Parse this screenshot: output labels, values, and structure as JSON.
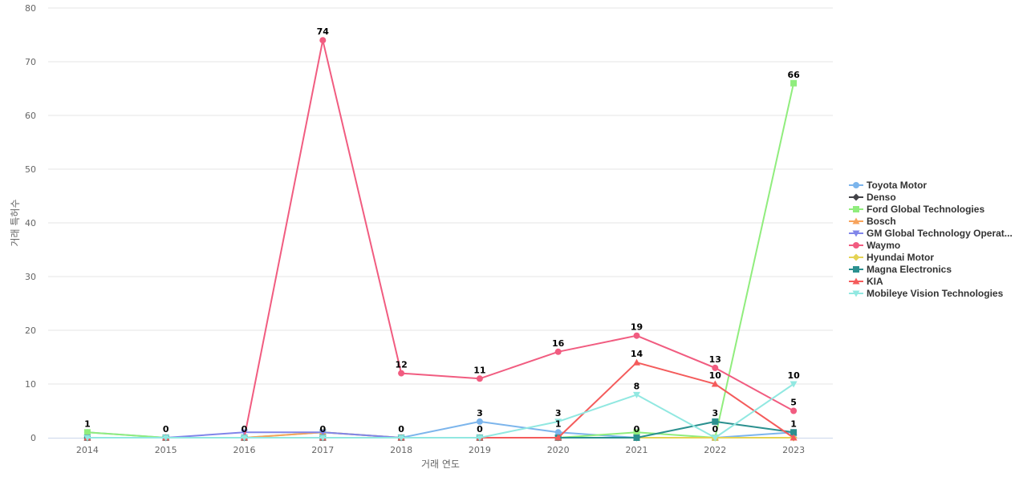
{
  "chart_data": {
    "type": "line",
    "xlabel": "거래 연도",
    "ylabel": "거래 특허수",
    "ylim": [
      0,
      80
    ],
    "yticks": [
      0,
      10,
      20,
      30,
      40,
      50,
      60,
      70,
      80
    ],
    "grid": true,
    "legend_position": "right",
    "categories": [
      "2014",
      "2015",
      "2016",
      "2017",
      "2018",
      "2019",
      "2020",
      "2021",
      "2022",
      "2023"
    ],
    "series": [
      {
        "name": "Toyota Motor",
        "color": "#7cb5ec",
        "marker": "circle",
        "values": [
          1,
          0,
          0,
          0,
          0,
          3,
          1,
          0,
          0,
          1
        ]
      },
      {
        "name": "Denso",
        "color": "#434348",
        "marker": "diamond",
        "values": [
          0,
          0,
          0,
          0,
          0,
          0,
          0,
          0,
          0,
          0
        ]
      },
      {
        "name": "Ford Global Technologies",
        "color": "#90ed7d",
        "marker": "square",
        "values": [
          1,
          0,
          0,
          1,
          0,
          0,
          0,
          1,
          0,
          66
        ]
      },
      {
        "name": "Bosch",
        "color": "#f7a35c",
        "marker": "triangle",
        "values": [
          0,
          0,
          0,
          1,
          0,
          0,
          0,
          0,
          0,
          0
        ]
      },
      {
        "name": "GM Global Technology Operat...",
        "color": "#8085e9",
        "marker": "triangle-down",
        "values": [
          0,
          0,
          1,
          1,
          0,
          0,
          0,
          0,
          0,
          0
        ]
      },
      {
        "name": "Waymo",
        "color": "#f15c80",
        "marker": "circle",
        "values": [
          0,
          0,
          0,
          74,
          12,
          11,
          16,
          19,
          13,
          5
        ]
      },
      {
        "name": "Hyundai Motor",
        "color": "#e4d354",
        "marker": "diamond",
        "values": [
          0,
          0,
          0,
          0,
          0,
          0,
          0,
          0,
          0,
          0
        ]
      },
      {
        "name": "Magna Electronics",
        "color": "#2b908f",
        "marker": "square",
        "values": [
          0,
          0,
          0,
          0,
          0,
          0,
          0,
          0,
          3,
          1
        ]
      },
      {
        "name": "KIA",
        "color": "#f45b5b",
        "marker": "triangle",
        "values": [
          0,
          0,
          0,
          0,
          0,
          0,
          0,
          14,
          10,
          0
        ]
      },
      {
        "name": "Mobileye Vision Technologies",
        "color": "#91e8e1",
        "marker": "triangle-down",
        "values": [
          0,
          0,
          0,
          0,
          0,
          0,
          3,
          8,
          0,
          10
        ]
      }
    ],
    "data_labels": [
      {
        "category": "2014",
        "text": "1"
      },
      {
        "category": "2015",
        "text": "0"
      },
      {
        "category": "2016",
        "text": "0"
      },
      {
        "category": "2017",
        "text": "74"
      },
      {
        "category": "2017",
        "text": "0"
      },
      {
        "category": "2018",
        "text": "12"
      },
      {
        "category": "2018",
        "text": "0"
      },
      {
        "category": "2019",
        "text": "3"
      },
      {
        "category": "2019",
        "text": "11"
      },
      {
        "category": "2019",
        "text": "0"
      },
      {
        "category": "2020",
        "text": "16"
      },
      {
        "category": "2020",
        "text": "3"
      },
      {
        "category": "2020",
        "text": "1"
      },
      {
        "category": "2021",
        "text": "19"
      },
      {
        "category": "2021",
        "text": "14"
      },
      {
        "category": "2021",
        "text": "8"
      },
      {
        "category": "2021",
        "text": "0"
      },
      {
        "category": "2022",
        "text": "13"
      },
      {
        "category": "2022",
        "text": "10"
      },
      {
        "category": "2022",
        "text": "3"
      },
      {
        "category": "2022",
        "text": "0"
      },
      {
        "category": "2023",
        "text": "66"
      },
      {
        "category": "2023",
        "text": "10"
      },
      {
        "category": "2023",
        "text": "5"
      },
      {
        "category": "2023",
        "text": "1"
      }
    ]
  }
}
